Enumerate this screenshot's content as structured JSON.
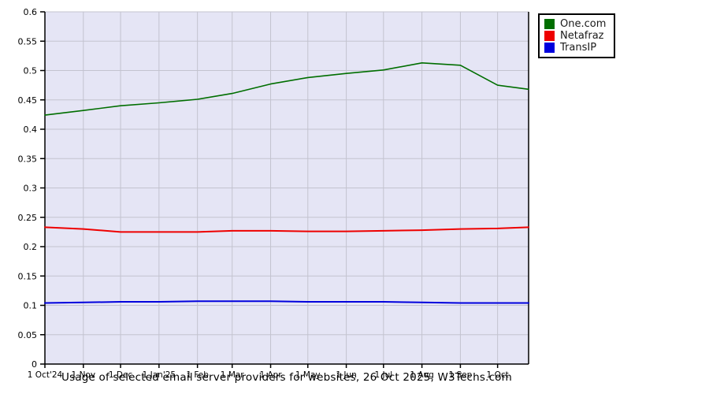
{
  "chart_data": {
    "type": "line",
    "title": "Usage of selected email server providers for websites, 26 Oct 2025, W3Techs.com",
    "xlabel": "",
    "ylabel": "",
    "ylim": [
      0,
      0.6
    ],
    "grid": true,
    "legend_position": "top-right",
    "plot_background": "#e5e5f5",
    "gridline_color": "#c3c3cf",
    "axis_color": "#000000",
    "x_total_days": 390,
    "x_ticks": [
      {
        "day": 0,
        "label": "1 Oct'24"
      },
      {
        "day": 31,
        "label": "1 Nov"
      },
      {
        "day": 61,
        "label": "1 Dec"
      },
      {
        "day": 92,
        "label": "1 Jan'25"
      },
      {
        "day": 123,
        "label": "1 Feb"
      },
      {
        "day": 151,
        "label": "1 Mar"
      },
      {
        "day": 182,
        "label": "1 Apr"
      },
      {
        "day": 212,
        "label": "1 May"
      },
      {
        "day": 243,
        "label": "1 Jun"
      },
      {
        "day": 273,
        "label": "1 Jul"
      },
      {
        "day": 304,
        "label": "1 Aug"
      },
      {
        "day": 335,
        "label": "1 Sep"
      },
      {
        "day": 365,
        "label": "1 Oct"
      }
    ],
    "y_ticks": [
      {
        "value": 0.6,
        "label": "0.6"
      },
      {
        "value": 0.55,
        "label": "0.55"
      },
      {
        "value": 0.5,
        "label": "0.5"
      },
      {
        "value": 0.45,
        "label": "0.45"
      },
      {
        "value": 0.4,
        "label": "0.4"
      },
      {
        "value": 0.35,
        "label": "0.35"
      },
      {
        "value": 0.3,
        "label": "0.3"
      },
      {
        "value": 0.25,
        "label": "0.25"
      },
      {
        "value": 0.2,
        "label": "0.2"
      },
      {
        "value": 0.15,
        "label": "0.15"
      },
      {
        "value": 0.1,
        "label": "0.1"
      },
      {
        "value": 0.05,
        "label": "0.05"
      },
      {
        "value": 0,
        "label": "0"
      }
    ],
    "x_days": [
      0,
      31,
      61,
      92,
      123,
      151,
      182,
      212,
      243,
      273,
      304,
      335,
      365,
      390
    ],
    "series": [
      {
        "name": "One.com",
        "color": "#006e00",
        "stroke_width": 1.6,
        "values": [
          0.424,
          0.432,
          0.44,
          0.445,
          0.451,
          0.461,
          0.477,
          0.488,
          0.495,
          0.501,
          0.513,
          0.509,
          0.475,
          0.468
        ]
      },
      {
        "name": "Netafraz",
        "color": "#ee0000",
        "stroke_width": 2,
        "values": [
          0.233,
          0.23,
          0.225,
          0.225,
          0.225,
          0.227,
          0.227,
          0.226,
          0.226,
          0.227,
          0.228,
          0.23,
          0.231,
          0.233
        ]
      },
      {
        "name": "TransIP",
        "color": "#0000dd",
        "stroke_width": 2,
        "values": [
          0.104,
          0.105,
          0.106,
          0.106,
          0.107,
          0.107,
          0.107,
          0.106,
          0.106,
          0.106,
          0.105,
          0.104,
          0.104,
          0.104
        ]
      }
    ]
  }
}
